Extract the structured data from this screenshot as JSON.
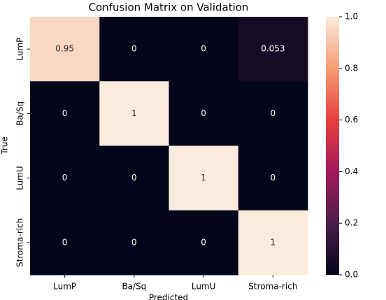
{
  "chart_data": {
    "type": "heatmap",
    "title": "Confusion Matrix on Validation",
    "x_label": "Predicted",
    "y_label": "True",
    "x_categories": [
      "LumP",
      "Ba/Sq",
      "LumU",
      "Stroma-rich"
    ],
    "y_categories": [
      "LumP",
      "Ba/Sq",
      "LumU",
      "Stroma-rich"
    ],
    "values": [
      [
        0.95,
        0,
        0,
        0.053
      ],
      [
        0,
        1,
        0,
        0
      ],
      [
        0,
        0,
        1,
        0
      ],
      [
        0,
        0,
        0,
        1
      ]
    ],
    "colormap": [
      "#03051a",
      "#4c1d4b",
      "#a11a5b",
      "#e83f3f",
      "#f69c73",
      "#faebdd"
    ],
    "clim": [
      0,
      1
    ],
    "cticks": [
      {
        "value": 0,
        "label": "0.0"
      },
      0.2,
      0.4,
      0.6,
      0.8,
      {
        "value": 1,
        "label": "1.0"
      }
    ]
  }
}
